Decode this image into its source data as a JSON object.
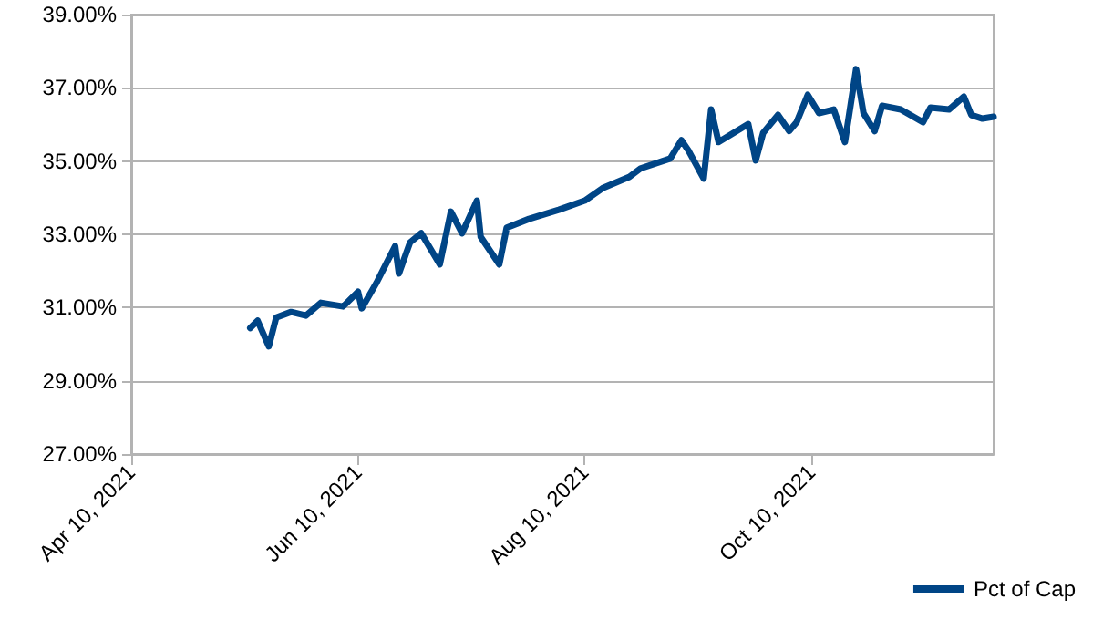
{
  "chart_data": {
    "type": "line",
    "x": [
      "2021-05-12",
      "2021-05-14",
      "2021-05-17",
      "2021-05-19",
      "2021-05-23",
      "2021-05-27",
      "2021-05-31",
      "2021-06-06",
      "2021-06-10",
      "2021-06-11",
      "2021-06-15",
      "2021-06-17",
      "2021-06-20",
      "2021-06-21",
      "2021-06-24",
      "2021-06-27",
      "2021-07-02",
      "2021-07-05",
      "2021-07-08",
      "2021-07-12",
      "2021-07-13",
      "2021-07-18",
      "2021-07-20",
      "2021-07-26",
      "2021-08-03",
      "2021-08-10",
      "2021-08-15",
      "2021-08-22",
      "2021-08-25",
      "2021-09-02",
      "2021-09-05",
      "2021-09-07",
      "2021-09-11",
      "2021-09-13",
      "2021-09-15",
      "2021-09-23",
      "2021-09-25",
      "2021-09-27",
      "2021-10-01",
      "2021-10-04",
      "2021-10-06",
      "2021-10-09",
      "2021-10-12",
      "2021-10-16",
      "2021-10-19",
      "2021-10-22",
      "2021-10-24",
      "2021-10-27",
      "2021-10-29",
      "2021-11-03",
      "2021-11-09",
      "2021-11-11",
      "2021-11-16",
      "2021-11-20",
      "2021-11-22",
      "2021-11-25",
      "2021-11-28"
    ],
    "series": [
      {
        "name": "Pct of Cap",
        "color": "#004586",
        "values": [
          30.44,
          30.64,
          29.94,
          30.73,
          30.88,
          30.78,
          31.13,
          31.03,
          31.43,
          30.98,
          31.68,
          32.08,
          32.68,
          31.93,
          32.78,
          33.03,
          32.18,
          33.62,
          33.03,
          33.92,
          32.93,
          32.18,
          33.18,
          33.42,
          33.67,
          33.92,
          34.27,
          34.57,
          34.8,
          35.07,
          35.57,
          35.27,
          34.52,
          36.41,
          35.52,
          36.01,
          35.02,
          35.77,
          36.26,
          35.82,
          36.06,
          36.81,
          36.31,
          36.41,
          35.52,
          37.51,
          36.31,
          35.82,
          36.51,
          36.41,
          36.06,
          36.46,
          36.41,
          36.76,
          36.26,
          36.16,
          36.21
        ]
      }
    ],
    "xlim": [
      "2021-04-10",
      "2021-11-28"
    ],
    "xticks": [
      {
        "value": "2021-04-10",
        "label": "Apr 10, 2021"
      },
      {
        "value": "2021-06-10",
        "label": "Jun 10, 2021"
      },
      {
        "value": "2021-08-10",
        "label": "Aug 10, 2021"
      },
      {
        "value": "2021-10-10",
        "label": "Oct 10, 2021"
      }
    ],
    "ylim": [
      27,
      39
    ],
    "yticks": [
      {
        "value": 27,
        "label": "27.00%"
      },
      {
        "value": 29,
        "label": "29.00%"
      },
      {
        "value": 31,
        "label": "31.00%"
      },
      {
        "value": 33,
        "label": "33.00%"
      },
      {
        "value": 35,
        "label": "35.00%"
      },
      {
        "value": 37,
        "label": "37.00%"
      },
      {
        "value": 39,
        "label": "39.00%"
      }
    ],
    "grid": "y",
    "legend": "bottom right",
    "marker": "none",
    "line_style": "solid"
  }
}
